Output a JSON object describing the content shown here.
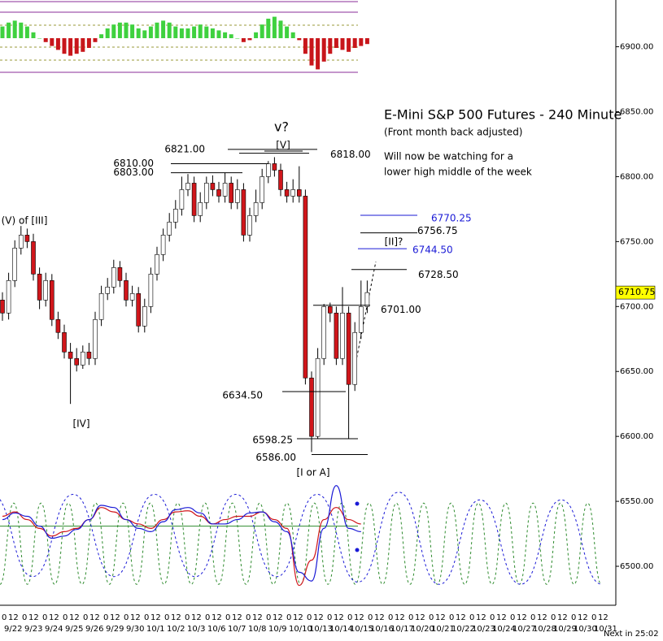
{
  "chart_data": {
    "type": "candlestick",
    "title": "E-Mini S&P 500 Futures - 240 Minute",
    "subtitle": "(Front month back adjusted)",
    "note": [
      "Will now be watching for a",
      "lower high middle of the week"
    ],
    "countdown": "Next in 25:02",
    "categories": [
      "9/22",
      "9/23",
      "9/24",
      "9/25",
      "9/26",
      "9/29",
      "9/30",
      "10/1",
      "10/2",
      "10/3",
      "10/6",
      "10/7",
      "10/8",
      "10/9",
      "10/10",
      "10/13",
      "10/14",
      "10/15",
      "10/16",
      "10/17",
      "10/20",
      "10/21",
      "10/22",
      "10/23",
      "10/24",
      "10/27",
      "10/28",
      "10/29",
      "10/30",
      "10/31"
    ],
    "hour_labels": [
      "0",
      "12"
    ],
    "open": [
      6705,
      6695,
      6720,
      6745,
      6755,
      6750,
      6725,
      6705,
      6720,
      6690,
      6680,
      6665,
      6660,
      6655,
      6665,
      6660,
      6690,
      6710,
      6715,
      6730,
      6720,
      6705,
      6710,
      6685,
      6700,
      6725,
      6740,
      6755,
      6765,
      6775,
      6790,
      6795,
      6770,
      6780,
      6795,
      6790,
      6785,
      6795,
      6780,
      6790,
      6755,
      6770,
      6780,
      6800,
      6810,
      6805,
      6790,
      6785,
      6790,
      6785,
      6645,
      6600,
      6660,
      6700,
      6695,
      6660,
      6695,
      6640,
      6680,
      6700
    ],
    "high": [
      6711,
      6726,
      6751,
      6762,
      6760,
      6756,
      6730,
      6726,
      6725,
      6696,
      6686,
      6672,
      6668,
      6670,
      6672,
      6696,
      6716,
      6722,
      6736,
      6735,
      6726,
      6716,
      6715,
      6706,
      6730,
      6746,
      6760,
      6772,
      6782,
      6800,
      6802,
      6800,
      6788,
      6800,
      6801,
      6796,
      6803,
      6800,
      6798,
      6795,
      6776,
      6790,
      6806,
      6812,
      6815,
      6810,
      6796,
      6798,
      6808,
      6790,
      6650,
      6668,
      6702,
      6703,
      6700,
      6715,
      6700,
      6688,
      6720,
      6720
    ],
    "low": [
      6689,
      6690,
      6715,
      6740,
      6745,
      6720,
      6698,
      6700,
      6685,
      6675,
      6660,
      6625,
      6650,
      6652,
      6655,
      6655,
      6685,
      6705,
      6710,
      6715,
      6700,
      6700,
      6680,
      6680,
      6695,
      6720,
      6735,
      6750,
      6760,
      6770,
      6785,
      6765,
      6765,
      6775,
      6785,
      6780,
      6780,
      6775,
      6775,
      6750,
      6750,
      6765,
      6775,
      6795,
      6800,
      6785,
      6780,
      6780,
      6780,
      6640,
      6588,
      6598,
      6655,
      6688,
      6655,
      6655,
      6598,
      6635,
      6675,
      6695
    ],
    "close": [
      6695,
      6720,
      6745,
      6755,
      6750,
      6725,
      6705,
      6720,
      6690,
      6680,
      6665,
      6660,
      6655,
      6665,
      6660,
      6690,
      6710,
      6715,
      6730,
      6720,
      6705,
      6710,
      6685,
      6700,
      6725,
      6740,
      6755,
      6765,
      6775,
      6790,
      6795,
      6770,
      6780,
      6795,
      6790,
      6785,
      6795,
      6780,
      6790,
      6755,
      6770,
      6780,
      6800,
      6810,
      6805,
      6790,
      6785,
      6790,
      6785,
      6645,
      6600,
      6660,
      6700,
      6695,
      6660,
      6695,
      6640,
      6680,
      6700,
      6710.75
    ],
    "ylim": [
      6470,
      6936
    ],
    "yticks": [
      {
        "value": 6500,
        "label": "6500.00"
      },
      {
        "value": 6550,
        "label": "6550.00"
      },
      {
        "value": 6600,
        "label": "6600.00"
      },
      {
        "value": 6650,
        "label": "6650.00"
      },
      {
        "value": 6700,
        "label": "6700.00"
      },
      {
        "value": 6750,
        "label": "6750.00"
      },
      {
        "value": 6800,
        "label": "6800.00"
      },
      {
        "value": 6850,
        "label": "6850.00"
      },
      {
        "value": 6900,
        "label": "6900.00"
      }
    ],
    "up_color": "#ffffff",
    "down_color": "#d0161b",
    "levels": [
      {
        "value": 6821,
        "label": "6821.00",
        "color": "#000000"
      },
      {
        "value": 6818,
        "label": "6818.00",
        "color": "#000000"
      },
      {
        "value": 6810,
        "label": "6810.00",
        "color": "#000000"
      },
      {
        "value": 6803,
        "label": "6803.00",
        "color": "#000000"
      },
      {
        "value": 6770.25,
        "label": "6770.25",
        "color": "#1a1ad6"
      },
      {
        "value": 6756.75,
        "label": "6756.75",
        "color": "#000000"
      },
      {
        "value": 6744.5,
        "label": "6744.50",
        "color": "#1a1ad6"
      },
      {
        "value": 6728.5,
        "label": "6728.50",
        "color": "#000000"
      },
      {
        "value": 6701,
        "label": "6701.00",
        "color": "#000000"
      },
      {
        "value": 6634.5,
        "label": "6634.50",
        "color": "#000000"
      },
      {
        "value": 6598.25,
        "label": "6598.25",
        "color": "#000000"
      },
      {
        "value": 6586,
        "label": "6586.00",
        "color": "#000000"
      }
    ],
    "annotations": [
      "v?",
      "[V]",
      "(V) of [III]",
      "[IV]",
      "[II]?",
      "[I or A]"
    ],
    "histogram": [
      6,
      8,
      9,
      8,
      6,
      3,
      0,
      -2,
      -4,
      -6,
      -8,
      -9,
      -8,
      -7,
      -5,
      -2,
      2,
      5,
      7,
      8,
      8,
      7,
      5,
      4,
      6,
      8,
      9,
      8,
      6,
      5,
      5,
      6,
      7,
      6,
      5,
      4,
      3,
      2,
      0,
      -2,
      -1,
      3,
      7,
      10,
      11,
      9,
      6,
      3,
      -1,
      -8,
      -14,
      -16,
      -12,
      -8,
      -5,
      -6,
      -7,
      -5,
      -4,
      -3
    ],
    "histogram_colors": {
      "positive": "#3fd13f",
      "negative": "#c8161b"
    },
    "oscillators": [
      {
        "color": "#d0161b",
        "values": [
          70,
          74,
          67,
          59,
          52,
          56,
          59,
          67,
          78,
          74,
          67,
          63,
          59,
          67,
          74,
          75,
          70,
          63,
          67,
          70,
          70,
          74,
          67,
          59,
          7,
          30,
          67,
          78,
          67,
          63
        ]
      },
      {
        "color": "#1a1ad6",
        "values": [
          67,
          73,
          70,
          61,
          50,
          52,
          58,
          67,
          80,
          78,
          67,
          59,
          56,
          65,
          76,
          78,
          73,
          63,
          63,
          67,
          73,
          74,
          65,
          56,
          19,
          11,
          59,
          98,
          59,
          56
        ]
      }
    ],
    "oscillator_level": 61,
    "cycles": [
      {
        "color": "#2e8b2e",
        "values": [
          8,
          82,
          8,
          82,
          8,
          82,
          8,
          82,
          8,
          82,
          8,
          82,
          8,
          82,
          8,
          82,
          8,
          82,
          8,
          82,
          8,
          82,
          8,
          82,
          8,
          82,
          8,
          82,
          8,
          82,
          8,
          82,
          8,
          82,
          8,
          82,
          8,
          82,
          8,
          82,
          8,
          82,
          8,
          82,
          8
        ]
      },
      {
        "color": "#1a1ad6",
        "values": [
          90,
          15,
          90,
          15,
          90,
          15,
          90,
          15,
          90,
          10,
          92,
          8,
          85,
          8,
          85,
          8
        ]
      }
    ]
  }
}
